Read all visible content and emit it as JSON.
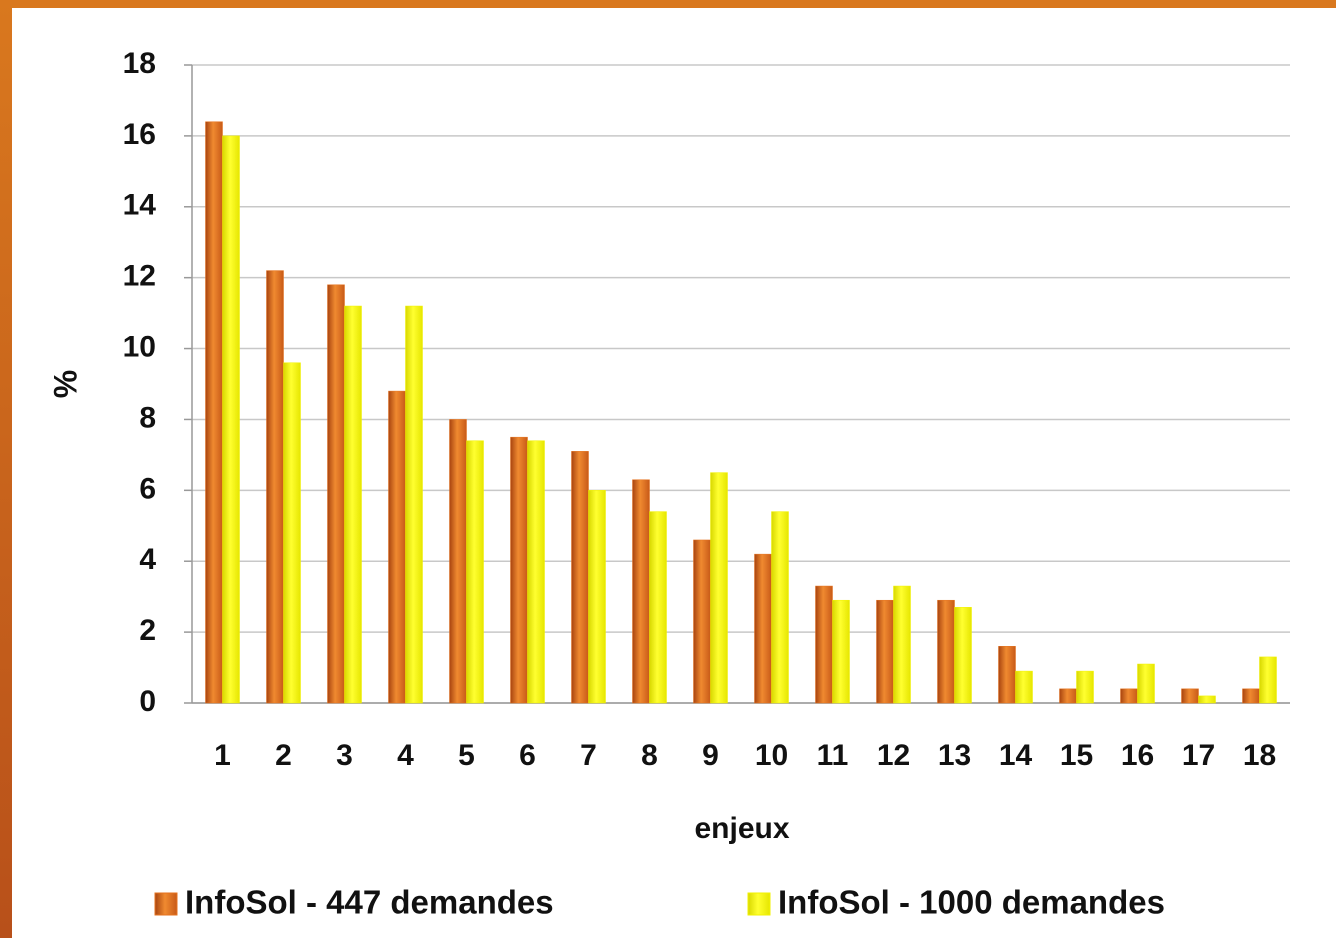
{
  "chart_data": {
    "type": "bar",
    "ylabel": "%",
    "xlabel": "enjeux",
    "categories": [
      "1",
      "2",
      "3",
      "4",
      "5",
      "6",
      "7",
      "8",
      "9",
      "10",
      "11",
      "12",
      "13",
      "14",
      "15",
      "16",
      "17",
      "18"
    ],
    "series": [
      {
        "name": "InfoSol - 447 demandes",
        "color": "#e5721e",
        "values": [
          16.4,
          12.2,
          11.8,
          8.8,
          8.0,
          7.5,
          7.1,
          6.3,
          4.6,
          4.2,
          3.3,
          2.9,
          2.9,
          1.6,
          0.4,
          0.4,
          0.4,
          0.4
        ]
      },
      {
        "name": "InfoSol - 1000 demandes",
        "color": "#f2f200",
        "values": [
          16.0,
          9.6,
          11.2,
          11.2,
          7.4,
          7.4,
          6.0,
          5.4,
          6.5,
          5.4,
          2.9,
          3.3,
          2.7,
          0.9,
          0.9,
          1.1,
          0.2,
          1.3
        ]
      }
    ],
    "ylim": [
      0,
      18
    ],
    "yticks": [
      0,
      2,
      4,
      6,
      8,
      10,
      12,
      14,
      16,
      18
    ],
    "grid": true,
    "legend": "bottom"
  }
}
